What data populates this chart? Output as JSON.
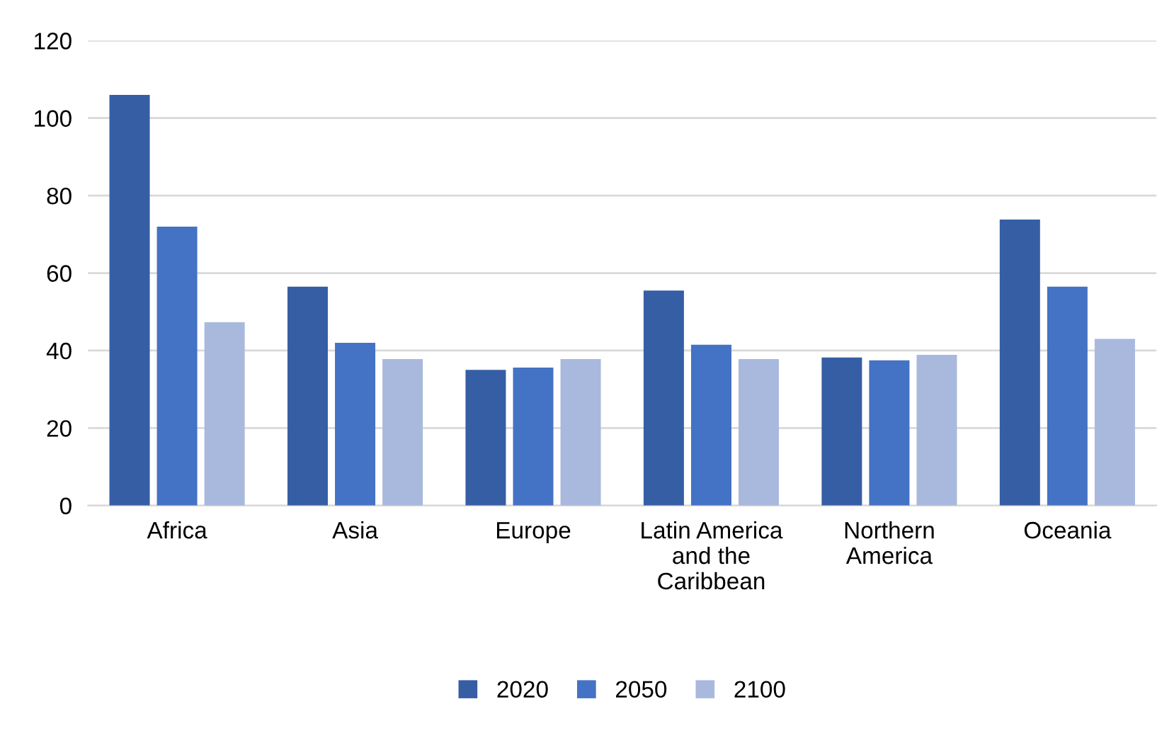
{
  "chart_data": {
    "type": "bar",
    "categories": [
      "Africa",
      "Asia",
      "Europe",
      "Latin America\nand the\nCaribbean",
      "Northern\nAmerica",
      "Oceania"
    ],
    "series": [
      {
        "name": "2020",
        "color": "#355ea5",
        "values": [
          106,
          56.5,
          35,
          55.5,
          38.2,
          73.8
        ]
      },
      {
        "name": "2050",
        "color": "#4472c4",
        "values": [
          72,
          42,
          35.6,
          41.5,
          37.5,
          56.5
        ]
      },
      {
        "name": "2100",
        "color": "#a9b8dd",
        "values": [
          47.3,
          37.8,
          37.8,
          37.8,
          38.9,
          43
        ]
      }
    ],
    "ylim": [
      0,
      120
    ],
    "yticks": [
      0,
      20,
      40,
      60,
      80,
      100,
      120
    ],
    "grid": "y",
    "legend": "bottom"
  }
}
